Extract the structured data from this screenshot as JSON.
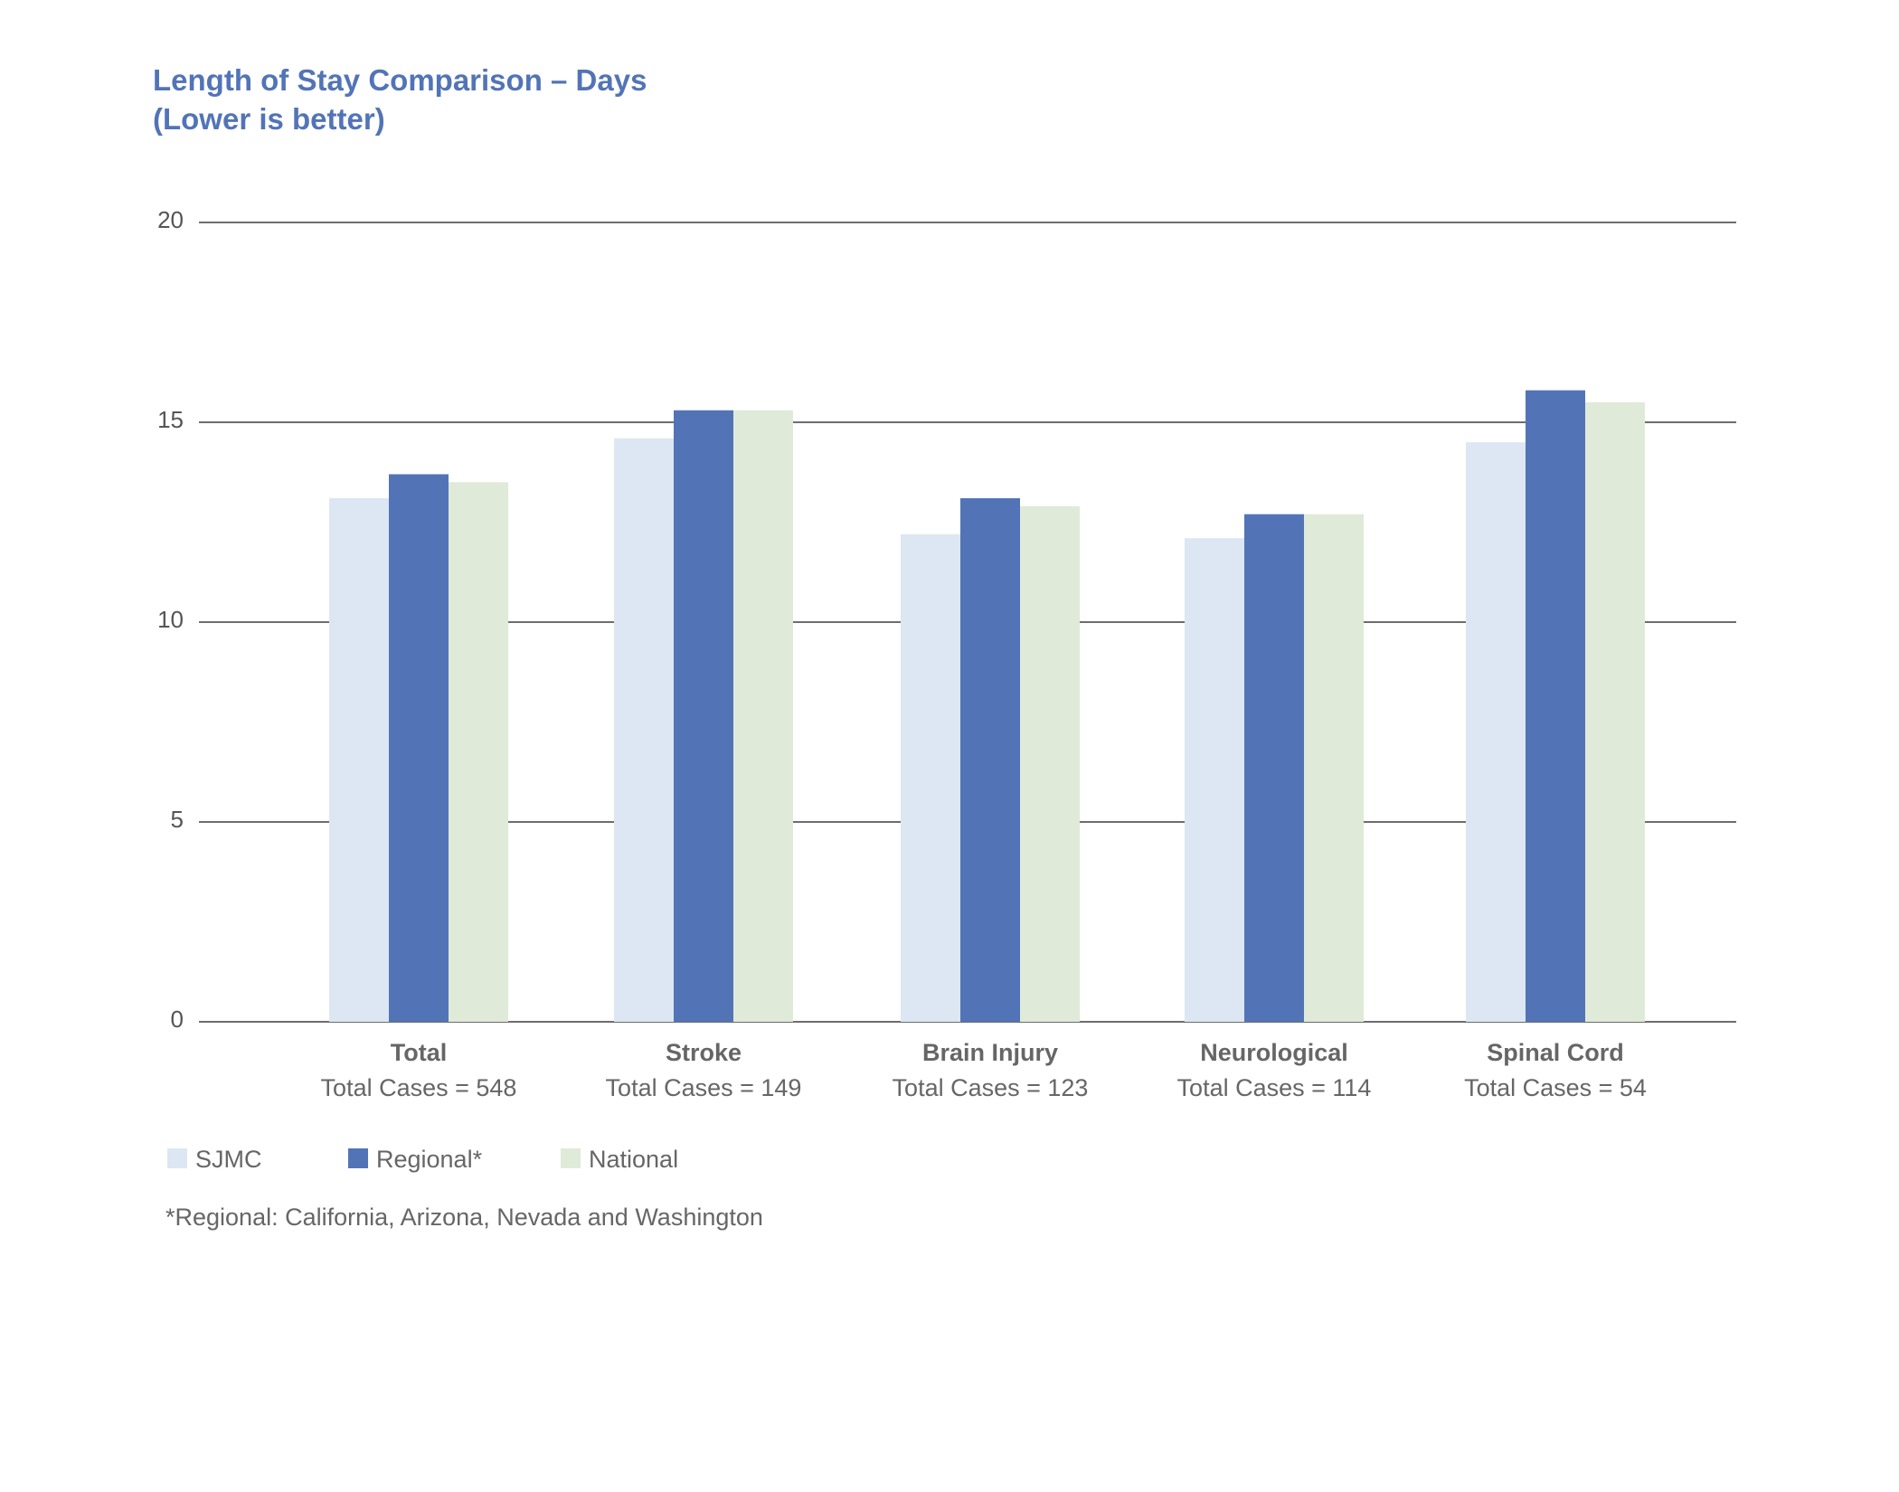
{
  "chart_data": {
    "type": "bar",
    "title": "Length of Stay Comparison – Days",
    "subtitle": "(Lower is better)",
    "xlabel": "",
    "ylabel": "",
    "ylim": [
      0,
      20
    ],
    "yticks": [
      0,
      5,
      10,
      15,
      20
    ],
    "grid": true,
    "categories": [
      "Total",
      "Stroke",
      "Brain Injury",
      "Neurological",
      "Spinal Cord"
    ],
    "category_sublabels": [
      "Total Cases = 548",
      "Total Cases = 149",
      "Total Cases = 123",
      "Total Cases = 114",
      "Total Cases = 54"
    ],
    "series": [
      {
        "name": "SJMC",
        "color": "#dce7f3",
        "values": [
          13.1,
          14.6,
          12.2,
          12.1,
          14.5
        ]
      },
      {
        "name": "Regional*",
        "color": "#5274b7",
        "values": [
          13.7,
          15.3,
          13.1,
          12.7,
          15.8
        ]
      },
      {
        "name": "National",
        "color": "#dfead9",
        "values": [
          13.5,
          15.3,
          12.9,
          12.7,
          15.5
        ]
      }
    ],
    "legend_position": "bottom-left",
    "footnote": "*Regional: California, Arizona, Nevada and Washington"
  }
}
